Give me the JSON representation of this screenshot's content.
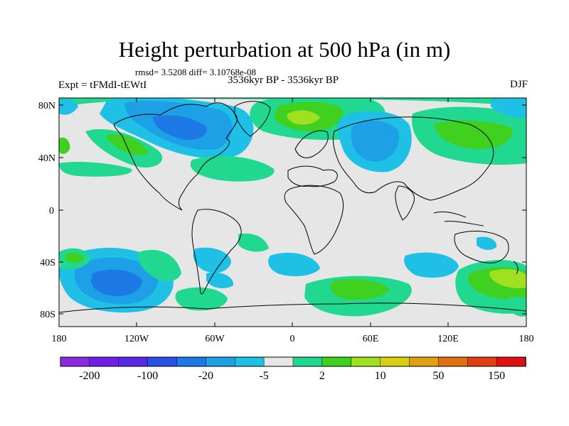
{
  "title": "Height perturbation at 500 hPa (in m)",
  "stats": "rmsd= 3.5208 diff= 3.10768e-08",
  "experiment": "Expt = tFMdI-tEWtI",
  "period": "3536kyr BP - 3536kyr BP",
  "season": "DJF",
  "map": {
    "lat_labels": [
      "80N",
      "40N",
      "0",
      "40S",
      "80S"
    ],
    "lon_labels": [
      "180",
      "120W",
      "60W",
      "0",
      "60E",
      "120E",
      "180"
    ],
    "background_color": "#e6e6e6"
  },
  "colorbar": {
    "colors": [
      "#8a2be2",
      "#7020e6",
      "#5a28e6",
      "#2850e6",
      "#1e78e6",
      "#1ea0e6",
      "#1ec0e6",
      "#e6e6e6",
      "#20d890",
      "#40d020",
      "#a0e020",
      "#d8d010",
      "#e0a010",
      "#e07010",
      "#e04010",
      "#e01010"
    ],
    "labels": [
      "-200",
      "-100",
      "-20",
      "-5",
      "2",
      "10",
      "50",
      "150"
    ]
  }
}
